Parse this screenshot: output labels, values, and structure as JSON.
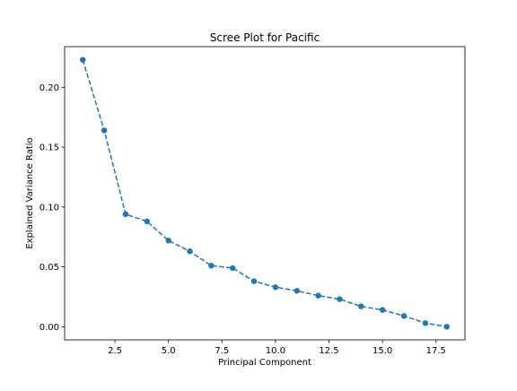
{
  "chart_data": {
    "type": "line",
    "title": "Scree Plot for Pacific",
    "xlabel": "Principal Component",
    "ylabel": "Explained Variance Ratio",
    "xlim": [
      0.15,
      18.85
    ],
    "ylim": [
      -0.011,
      0.234
    ],
    "xticks": [
      2.5,
      5.0,
      7.5,
      10.0,
      12.5,
      15.0,
      17.5
    ],
    "xtick_labels": [
      "2.5",
      "5.0",
      "7.5",
      "10.0",
      "12.5",
      "15.0",
      "17.5"
    ],
    "yticks": [
      0.0,
      0.05,
      0.1,
      0.15,
      0.2
    ],
    "ytick_labels": [
      "0.00",
      "0.05",
      "0.10",
      "0.15",
      "0.20"
    ],
    "grid": false,
    "legend": false,
    "series": [
      {
        "color": "#1f77b4",
        "line_style": "dashed",
        "marker": "circle",
        "x": [
          1,
          2,
          3,
          4,
          5,
          6,
          7,
          8,
          9,
          10,
          11,
          12,
          13,
          14,
          15,
          16,
          17,
          18
        ],
        "y": [
          0.223,
          0.164,
          0.094,
          0.088,
          0.072,
          0.063,
          0.051,
          0.049,
          0.038,
          0.033,
          0.03,
          0.026,
          0.023,
          0.017,
          0.014,
          0.009,
          0.003,
          0.0
        ]
      }
    ]
  }
}
